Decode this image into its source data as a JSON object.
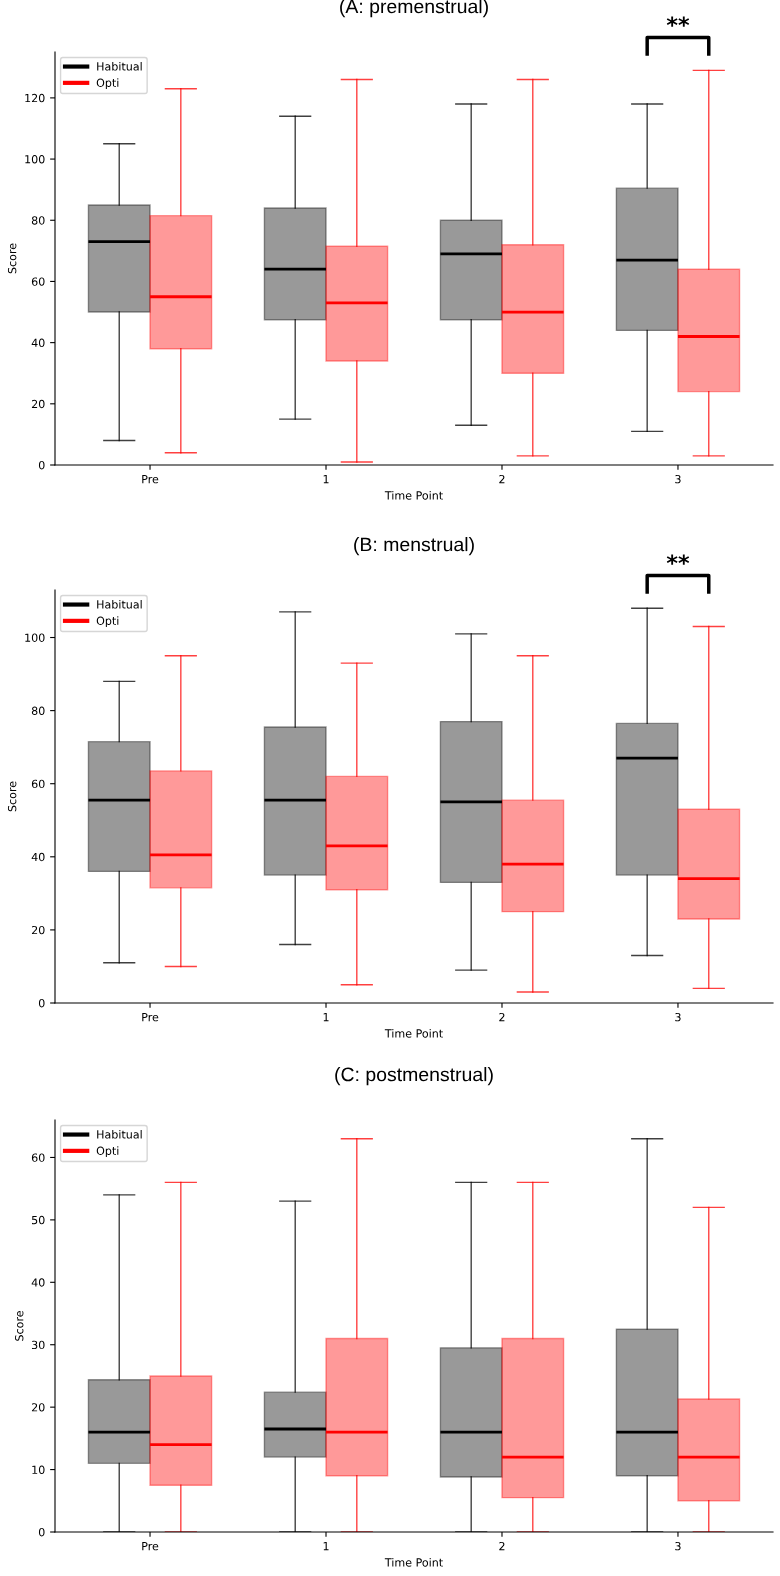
{
  "chart_data": [
    {
      "type": "box",
      "title": "(A: premenstrual)",
      "xlabel": "Time Point",
      "ylabel": "Score",
      "categories": [
        "Pre",
        "1",
        "2",
        "3"
      ],
      "ylim": [
        0,
        135
      ],
      "yticks": [
        0,
        20,
        40,
        60,
        80,
        100,
        120
      ],
      "legend": "top left",
      "grid": false,
      "annotations": [
        "**"
      ],
      "series": [
        {
          "name": "Habitual",
          "color": "#000000",
          "boxes": [
            {
              "low": 8,
              "q1": 50,
              "median": 73,
              "q3": 85,
              "high": 105
            },
            {
              "low": 15,
              "q1": 47.5,
              "median": 64,
              "q3": 84,
              "high": 114
            },
            {
              "low": 13,
              "q1": 47.5,
              "median": 69,
              "q3": 80,
              "high": 118
            },
            {
              "low": 11,
              "q1": 44,
              "median": 67,
              "q3": 90.5,
              "high": 118
            }
          ]
        },
        {
          "name": "Opti",
          "color": "#ff0000",
          "boxes": [
            {
              "low": 4,
              "q1": 38,
              "median": 55,
              "q3": 81.5,
              "high": 123
            },
            {
              "low": 1,
              "q1": 34,
              "median": 53,
              "q3": 71.5,
              "high": 126
            },
            {
              "low": 3,
              "q1": 30,
              "median": 50,
              "q3": 72,
              "high": 126
            },
            {
              "low": 3,
              "q1": 24,
              "median": 42,
              "q3": 64,
              "high": 129
            }
          ]
        }
      ]
    },
    {
      "type": "box",
      "title": "(B: menstrual)",
      "xlabel": "Time Point",
      "ylabel": "Score",
      "categories": [
        "Pre",
        "1",
        "2",
        "3"
      ],
      "ylim": [
        0,
        113
      ],
      "yticks": [
        0,
        20,
        40,
        60,
        80,
        100
      ],
      "legend": "top left",
      "grid": false,
      "annotations": [
        "**"
      ],
      "series": [
        {
          "name": "Habitual",
          "color": "#000000",
          "boxes": [
            {
              "low": 11,
              "q1": 36,
              "median": 55.5,
              "q3": 71.5,
              "high": 88
            },
            {
              "low": 16,
              "q1": 35,
              "median": 55.5,
              "q3": 75.5,
              "high": 107
            },
            {
              "low": 9,
              "q1": 33,
              "median": 55,
              "q3": 77,
              "high": 101
            },
            {
              "low": 13,
              "q1": 35,
              "median": 67,
              "q3": 76.5,
              "high": 108
            }
          ]
        },
        {
          "name": "Opti",
          "color": "#ff0000",
          "boxes": [
            {
              "low": 10,
              "q1": 31.5,
              "median": 40.5,
              "q3": 63.5,
              "high": 95
            },
            {
              "low": 5,
              "q1": 31,
              "median": 43,
              "q3": 62,
              "high": 93
            },
            {
              "low": 3,
              "q1": 25,
              "median": 38,
              "q3": 55.5,
              "high": 95
            },
            {
              "low": 4,
              "q1": 23,
              "median": 34,
              "q3": 53,
              "high": 103
            }
          ]
        }
      ]
    },
    {
      "type": "box",
      "title": "(C: postmenstrual)",
      "xlabel": "Time Point",
      "ylabel": "Score",
      "categories": [
        "Pre",
        "1",
        "2",
        "3"
      ],
      "ylim": [
        0,
        66
      ],
      "yticks": [
        0,
        10,
        20,
        30,
        40,
        50,
        60
      ],
      "legend": "top left",
      "grid": false,
      "series": [
        {
          "name": "Habitual",
          "color": "#000000",
          "boxes": [
            {
              "low": 0,
              "q1": 11,
              "median": 16,
              "q3": 24.4,
              "high": 54
            },
            {
              "low": 0,
              "q1": 12,
              "median": 16.5,
              "q3": 22.4,
              "high": 53
            },
            {
              "low": 0,
              "q1": 8.8,
              "median": 16,
              "q3": 29.5,
              "high": 56
            },
            {
              "low": 0,
              "q1": 9,
              "median": 16,
              "q3": 32.5,
              "high": 63
            }
          ]
        },
        {
          "name": "Opti",
          "color": "#ff0000",
          "boxes": [
            {
              "low": 0,
              "q1": 7.5,
              "median": 14,
              "q3": 25,
              "high": 56
            },
            {
              "low": 0,
              "q1": 9,
              "median": 16,
              "q3": 31,
              "high": 63
            },
            {
              "low": 0,
              "q1": 5.5,
              "median": 12,
              "q3": 31,
              "high": 56
            },
            {
              "low": 0,
              "q1": 5,
              "median": 12,
              "q3": 21.3,
              "high": 52
            }
          ]
        }
      ]
    }
  ]
}
